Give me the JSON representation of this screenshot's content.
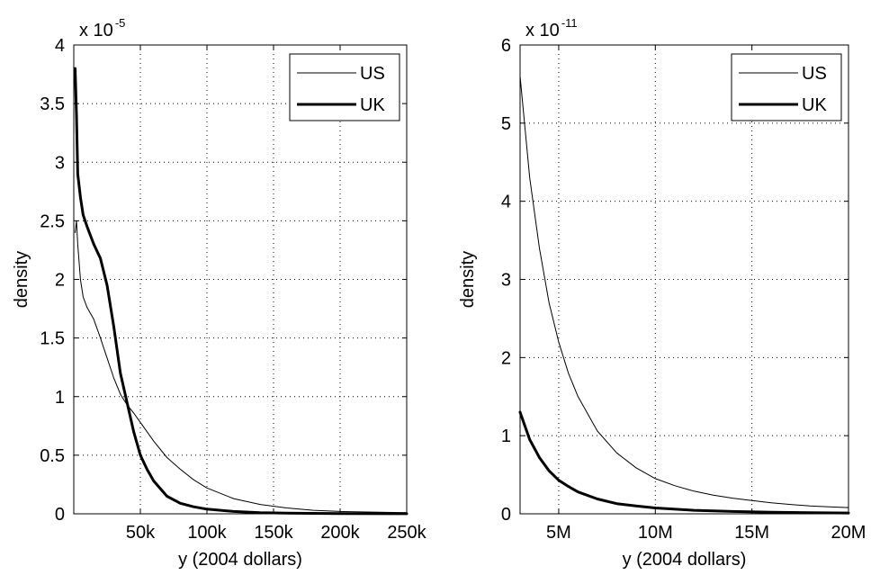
{
  "chart_data": [
    {
      "type": "line",
      "xlabel": "y (2004 dollars)",
      "ylabel": "density",
      "y_multiplier": {
        "base": "x 10",
        "exponent": "-5"
      },
      "xlim": [
        0,
        250000
      ],
      "ylim": [
        0,
        4
      ],
      "xticks": [
        50000,
        100000,
        150000,
        200000,
        250000
      ],
      "xtick_labels": [
        "50k",
        "100k",
        "150k",
        "200k",
        "250k"
      ],
      "yticks": [
        0,
        0.5,
        1,
        1.5,
        2,
        2.5,
        3,
        3.5,
        4
      ],
      "ytick_labels": [
        "0",
        "0.5",
        "1",
        "1.5",
        "2",
        "2.5",
        "3",
        "3.5",
        "4"
      ],
      "grid": true,
      "legend_position": "top-right",
      "series": [
        {
          "name": "US",
          "line_weight": "thin",
          "x": [
            1000,
            2000,
            3000,
            5000,
            7000,
            10000,
            15000,
            20000,
            25000,
            30000,
            35000,
            40000,
            45000,
            50000,
            60000,
            70000,
            80000,
            90000,
            100000,
            120000,
            140000,
            160000,
            180000,
            200000,
            220000,
            250000
          ],
          "y": [
            2.4,
            2.5,
            2.3,
            2.0,
            1.85,
            1.76,
            1.66,
            1.5,
            1.33,
            1.16,
            1.02,
            0.93,
            0.86,
            0.78,
            0.62,
            0.48,
            0.38,
            0.29,
            0.22,
            0.13,
            0.08,
            0.05,
            0.03,
            0.02,
            0.015,
            0.01
          ]
        },
        {
          "name": "UK",
          "line_weight": "thick",
          "x": [
            1000,
            2000,
            3000,
            5000,
            7000,
            10000,
            15000,
            20000,
            25000,
            30000,
            35000,
            40000,
            45000,
            50000,
            55000,
            60000,
            70000,
            80000,
            90000,
            100000,
            120000,
            140000,
            160000,
            200000,
            250000
          ],
          "y": [
            3.8,
            3.4,
            2.9,
            2.7,
            2.55,
            2.45,
            2.3,
            2.18,
            1.95,
            1.6,
            1.2,
            0.95,
            0.7,
            0.5,
            0.38,
            0.28,
            0.15,
            0.09,
            0.06,
            0.04,
            0.02,
            0.01,
            0.005,
            0.002,
            0.001
          ]
        }
      ]
    },
    {
      "type": "line",
      "xlabel": "y (2004 dollars)",
      "ylabel": "density",
      "y_multiplier": {
        "base": "x 10",
        "exponent": "-11"
      },
      "xlim": [
        3000000,
        20000000
      ],
      "ylim": [
        0,
        6
      ],
      "xticks": [
        5000000,
        10000000,
        15000000,
        20000000
      ],
      "xtick_labels": [
        "5M",
        "10M",
        "15M",
        "20M"
      ],
      "yticks": [
        0,
        1,
        2,
        3,
        4,
        5,
        6
      ],
      "ytick_labels": [
        "0",
        "1",
        "2",
        "3",
        "4",
        "5",
        "6"
      ],
      "grid": true,
      "legend_position": "top-right",
      "series": [
        {
          "name": "US",
          "line_weight": "thin",
          "x": [
            3000000,
            3500000,
            4000000,
            4500000,
            5000000,
            5500000,
            6000000,
            7000000,
            8000000,
            9000000,
            10000000,
            11000000,
            12000000,
            13000000,
            14000000,
            15000000,
            16000000,
            17000000,
            18000000,
            19000000,
            20000000
          ],
          "y": [
            5.6,
            4.3,
            3.4,
            2.7,
            2.2,
            1.8,
            1.5,
            1.06,
            0.78,
            0.59,
            0.45,
            0.36,
            0.29,
            0.24,
            0.2,
            0.17,
            0.14,
            0.12,
            0.1,
            0.09,
            0.08
          ]
        },
        {
          "name": "UK",
          "line_weight": "thick",
          "x": [
            3000000,
            3500000,
            4000000,
            4500000,
            5000000,
            5500000,
            6000000,
            7000000,
            8000000,
            9000000,
            10000000,
            12000000,
            14000000,
            16000000,
            18000000,
            20000000
          ],
          "y": [
            1.3,
            0.95,
            0.72,
            0.55,
            0.43,
            0.35,
            0.28,
            0.19,
            0.13,
            0.1,
            0.075,
            0.045,
            0.03,
            0.02,
            0.015,
            0.01
          ]
        }
      ]
    }
  ]
}
